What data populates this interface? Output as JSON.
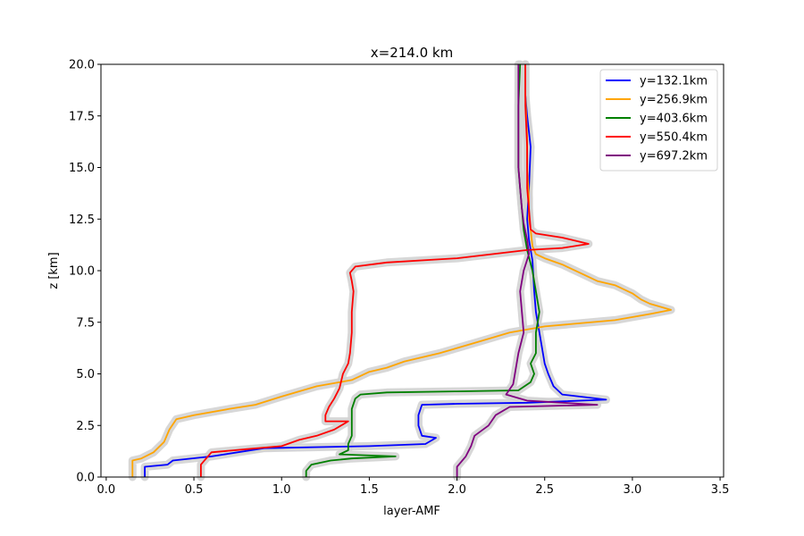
{
  "chart_data": {
    "type": "line",
    "title": "x=214.0 km",
    "xlabel": "layer-AMF",
    "ylabel": "z [km]",
    "xlim": [
      -0.03,
      3.52
    ],
    "ylim": [
      0,
      20
    ],
    "xticks": [
      "0.0",
      "0.5",
      "1.0",
      "1.5",
      "2.0",
      "2.5",
      "3.0",
      "3.5"
    ],
    "yticks": [
      "0.0",
      "2.5",
      "5.0",
      "7.5",
      "10.0",
      "12.5",
      "15.0",
      "17.5",
      "20.0"
    ],
    "grid": false,
    "legend_position": "top-right",
    "series": [
      {
        "name": "y=132.1km",
        "color": "#0000ff",
        "band_color": "#d3d3d3",
        "points": [
          [
            0.22,
            0
          ],
          [
            0.22,
            0.5
          ],
          [
            0.35,
            0.6
          ],
          [
            0.38,
            0.8
          ],
          [
            0.6,
            1.0
          ],
          [
            0.9,
            1.4
          ],
          [
            1.5,
            1.5
          ],
          [
            1.82,
            1.6
          ],
          [
            1.88,
            1.9
          ],
          [
            1.8,
            2.0
          ],
          [
            1.78,
            2.5
          ],
          [
            1.78,
            3.0
          ],
          [
            1.8,
            3.5
          ],
          [
            2.0,
            3.55
          ],
          [
            2.4,
            3.6
          ],
          [
            2.85,
            3.75
          ],
          [
            2.6,
            4.0
          ],
          [
            2.55,
            4.4
          ],
          [
            2.52,
            5.0
          ],
          [
            2.5,
            5.5
          ],
          [
            2.48,
            6.5
          ],
          [
            2.45,
            8.0
          ],
          [
            2.44,
            9.0
          ],
          [
            2.43,
            10.5
          ],
          [
            2.41,
            11.5
          ],
          [
            2.4,
            12.5
          ],
          [
            2.41,
            14.0
          ],
          [
            2.42,
            16.0
          ],
          [
            2.4,
            17.5
          ],
          [
            2.39,
            18.5
          ],
          [
            2.39,
            20.0
          ]
        ]
      },
      {
        "name": "y=256.9km",
        "color": "#ffa500",
        "band_color": "#d3d3d3",
        "points": [
          [
            0.15,
            0
          ],
          [
            0.15,
            0.8
          ],
          [
            0.2,
            0.9
          ],
          [
            0.27,
            1.2
          ],
          [
            0.33,
            1.7
          ],
          [
            0.36,
            2.3
          ],
          [
            0.4,
            2.8
          ],
          [
            0.5,
            3.0
          ],
          [
            0.7,
            3.3
          ],
          [
            0.85,
            3.5
          ],
          [
            1.0,
            3.9
          ],
          [
            1.2,
            4.4
          ],
          [
            1.4,
            4.7
          ],
          [
            1.5,
            5.1
          ],
          [
            1.6,
            5.3
          ],
          [
            1.7,
            5.6
          ],
          [
            1.9,
            6.0
          ],
          [
            2.1,
            6.5
          ],
          [
            2.3,
            7.0
          ],
          [
            2.5,
            7.3
          ],
          [
            2.9,
            7.6
          ],
          [
            3.1,
            7.9
          ],
          [
            3.22,
            8.1
          ],
          [
            3.1,
            8.4
          ],
          [
            3.05,
            8.6
          ],
          [
            3.0,
            8.9
          ],
          [
            2.9,
            9.3
          ],
          [
            2.8,
            9.5
          ],
          [
            2.7,
            9.9
          ],
          [
            2.6,
            10.3
          ],
          [
            2.5,
            10.6
          ],
          [
            2.45,
            10.8
          ],
          [
            2.43,
            11.2
          ],
          [
            2.42,
            12.0
          ],
          [
            2.41,
            12.5
          ],
          [
            2.41,
            13.5
          ],
          [
            2.4,
            15.0
          ],
          [
            2.4,
            16.5
          ],
          [
            2.39,
            18.5
          ],
          [
            2.39,
            20.0
          ]
        ]
      },
      {
        "name": "y=403.6km",
        "color": "#008000",
        "band_color": "#d3d3d3",
        "points": [
          [
            1.14,
            0
          ],
          [
            1.14,
            0.3
          ],
          [
            1.17,
            0.6
          ],
          [
            1.28,
            0.8
          ],
          [
            1.4,
            0.9
          ],
          [
            1.65,
            1.0
          ],
          [
            1.33,
            1.1
          ],
          [
            1.38,
            1.3
          ],
          [
            1.38,
            1.6
          ],
          [
            1.4,
            2.0
          ],
          [
            1.4,
            2.7
          ],
          [
            1.4,
            3.3
          ],
          [
            1.42,
            3.8
          ],
          [
            1.45,
            4.0
          ],
          [
            1.6,
            4.1
          ],
          [
            2.0,
            4.15
          ],
          [
            2.35,
            4.2
          ],
          [
            2.42,
            4.6
          ],
          [
            2.44,
            5.0
          ],
          [
            2.42,
            5.5
          ],
          [
            2.45,
            6.0
          ],
          [
            2.45,
            7.0
          ],
          [
            2.47,
            8.0
          ],
          [
            2.45,
            9.0
          ],
          [
            2.43,
            10.0
          ],
          [
            2.4,
            11.0
          ],
          [
            2.38,
            12.0
          ],
          [
            2.37,
            13.0
          ],
          [
            2.36,
            14.0
          ],
          [
            2.35,
            15.0
          ],
          [
            2.35,
            16.0
          ],
          [
            2.35,
            18.0
          ],
          [
            2.36,
            20.0
          ]
        ]
      },
      {
        "name": "y=550.4km",
        "color": "#ff0000",
        "band_color": "#d3d3d3",
        "points": [
          [
            0.54,
            0
          ],
          [
            0.54,
            0.6
          ],
          [
            0.57,
            0.9
          ],
          [
            0.6,
            1.2
          ],
          [
            0.8,
            1.35
          ],
          [
            1.0,
            1.5
          ],
          [
            1.1,
            1.8
          ],
          [
            1.2,
            2.0
          ],
          [
            1.3,
            2.3
          ],
          [
            1.38,
            2.7
          ],
          [
            1.25,
            2.7
          ],
          [
            1.25,
            3.0
          ],
          [
            1.27,
            3.4
          ],
          [
            1.3,
            3.8
          ],
          [
            1.33,
            4.3
          ],
          [
            1.35,
            5.0
          ],
          [
            1.38,
            5.5
          ],
          [
            1.39,
            6.0
          ],
          [
            1.4,
            7.0
          ],
          [
            1.4,
            8.0
          ],
          [
            1.41,
            9.0
          ],
          [
            1.4,
            9.5
          ],
          [
            1.39,
            9.9
          ],
          [
            1.42,
            10.2
          ],
          [
            1.6,
            10.4
          ],
          [
            2.0,
            10.6
          ],
          [
            2.2,
            10.8
          ],
          [
            2.4,
            11.0
          ],
          [
            2.6,
            11.1
          ],
          [
            2.75,
            11.3
          ],
          [
            2.6,
            11.6
          ],
          [
            2.45,
            11.8
          ],
          [
            2.42,
            12.0
          ],
          [
            2.41,
            13.0
          ],
          [
            2.4,
            14.0
          ],
          [
            2.4,
            16.0
          ],
          [
            2.39,
            18.0
          ],
          [
            2.39,
            20.0
          ]
        ]
      },
      {
        "name": "y=697.2km",
        "color": "#800080",
        "band_color": "#d3d3d3",
        "points": [
          [
            2.0,
            0
          ],
          [
            2.0,
            0.5
          ],
          [
            2.05,
            1.0
          ],
          [
            2.08,
            1.5
          ],
          [
            2.1,
            2.0
          ],
          [
            2.18,
            2.5
          ],
          [
            2.22,
            3.0
          ],
          [
            2.3,
            3.4
          ],
          [
            2.8,
            3.5
          ],
          [
            2.4,
            3.7
          ],
          [
            2.28,
            4.0
          ],
          [
            2.32,
            4.5
          ],
          [
            2.33,
            5.0
          ],
          [
            2.35,
            6.0
          ],
          [
            2.38,
            7.0
          ],
          [
            2.37,
            8.0
          ],
          [
            2.36,
            9.0
          ],
          [
            2.38,
            10.0
          ],
          [
            2.41,
            10.8
          ],
          [
            2.4,
            11.5
          ],
          [
            2.38,
            12.3
          ],
          [
            2.37,
            13.0
          ],
          [
            2.36,
            14.0
          ],
          [
            2.35,
            15.0
          ],
          [
            2.35,
            16.5
          ],
          [
            2.35,
            18.0
          ],
          [
            2.35,
            20.0
          ]
        ]
      }
    ]
  }
}
